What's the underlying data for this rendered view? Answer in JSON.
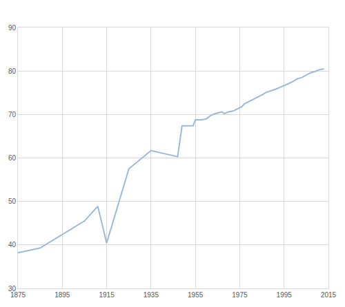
{
  "chart_data": {
    "type": "line",
    "x": [
      1875,
      1885,
      1905,
      1911,
      1915,
      1925,
      1935,
      1947,
      1949,
      1954,
      1955,
      1958,
      1960,
      1962,
      1964,
      1966,
      1967,
      1968,
      1970,
      1972,
      1974,
      1976,
      1977,
      1979,
      1981,
      1983,
      1985,
      1987,
      1989,
      1991,
      1993,
      1995,
      1997,
      1999,
      2001,
      2003,
      2005,
      2007,
      2009,
      2011,
      2013
    ],
    "values": [
      38.2,
      39.3,
      45.5,
      48.9,
      40.4,
      57.5,
      61.7,
      60.3,
      67.4,
      67.4,
      68.8,
      68.8,
      69.0,
      69.8,
      70.2,
      70.5,
      70.6,
      70.2,
      70.6,
      70.8,
      71.3,
      71.8,
      72.4,
      72.9,
      73.5,
      74.0,
      74.5,
      75.1,
      75.4,
      75.8,
      76.2,
      76.6,
      77.1,
      77.6,
      78.2,
      78.5,
      79.1,
      79.6,
      79.9,
      80.3,
      80.5
    ],
    "color": "#9bb9db",
    "xlim": [
      1875,
      2015
    ],
    "xticks": [
      1875,
      1895,
      1915,
      1935,
      1955,
      1975,
      1995,
      2015
    ],
    "ylim": [
      30,
      90
    ],
    "yticks": [
      30,
      40,
      50,
      60,
      70,
      80,
      90
    ],
    "grid": true
  }
}
